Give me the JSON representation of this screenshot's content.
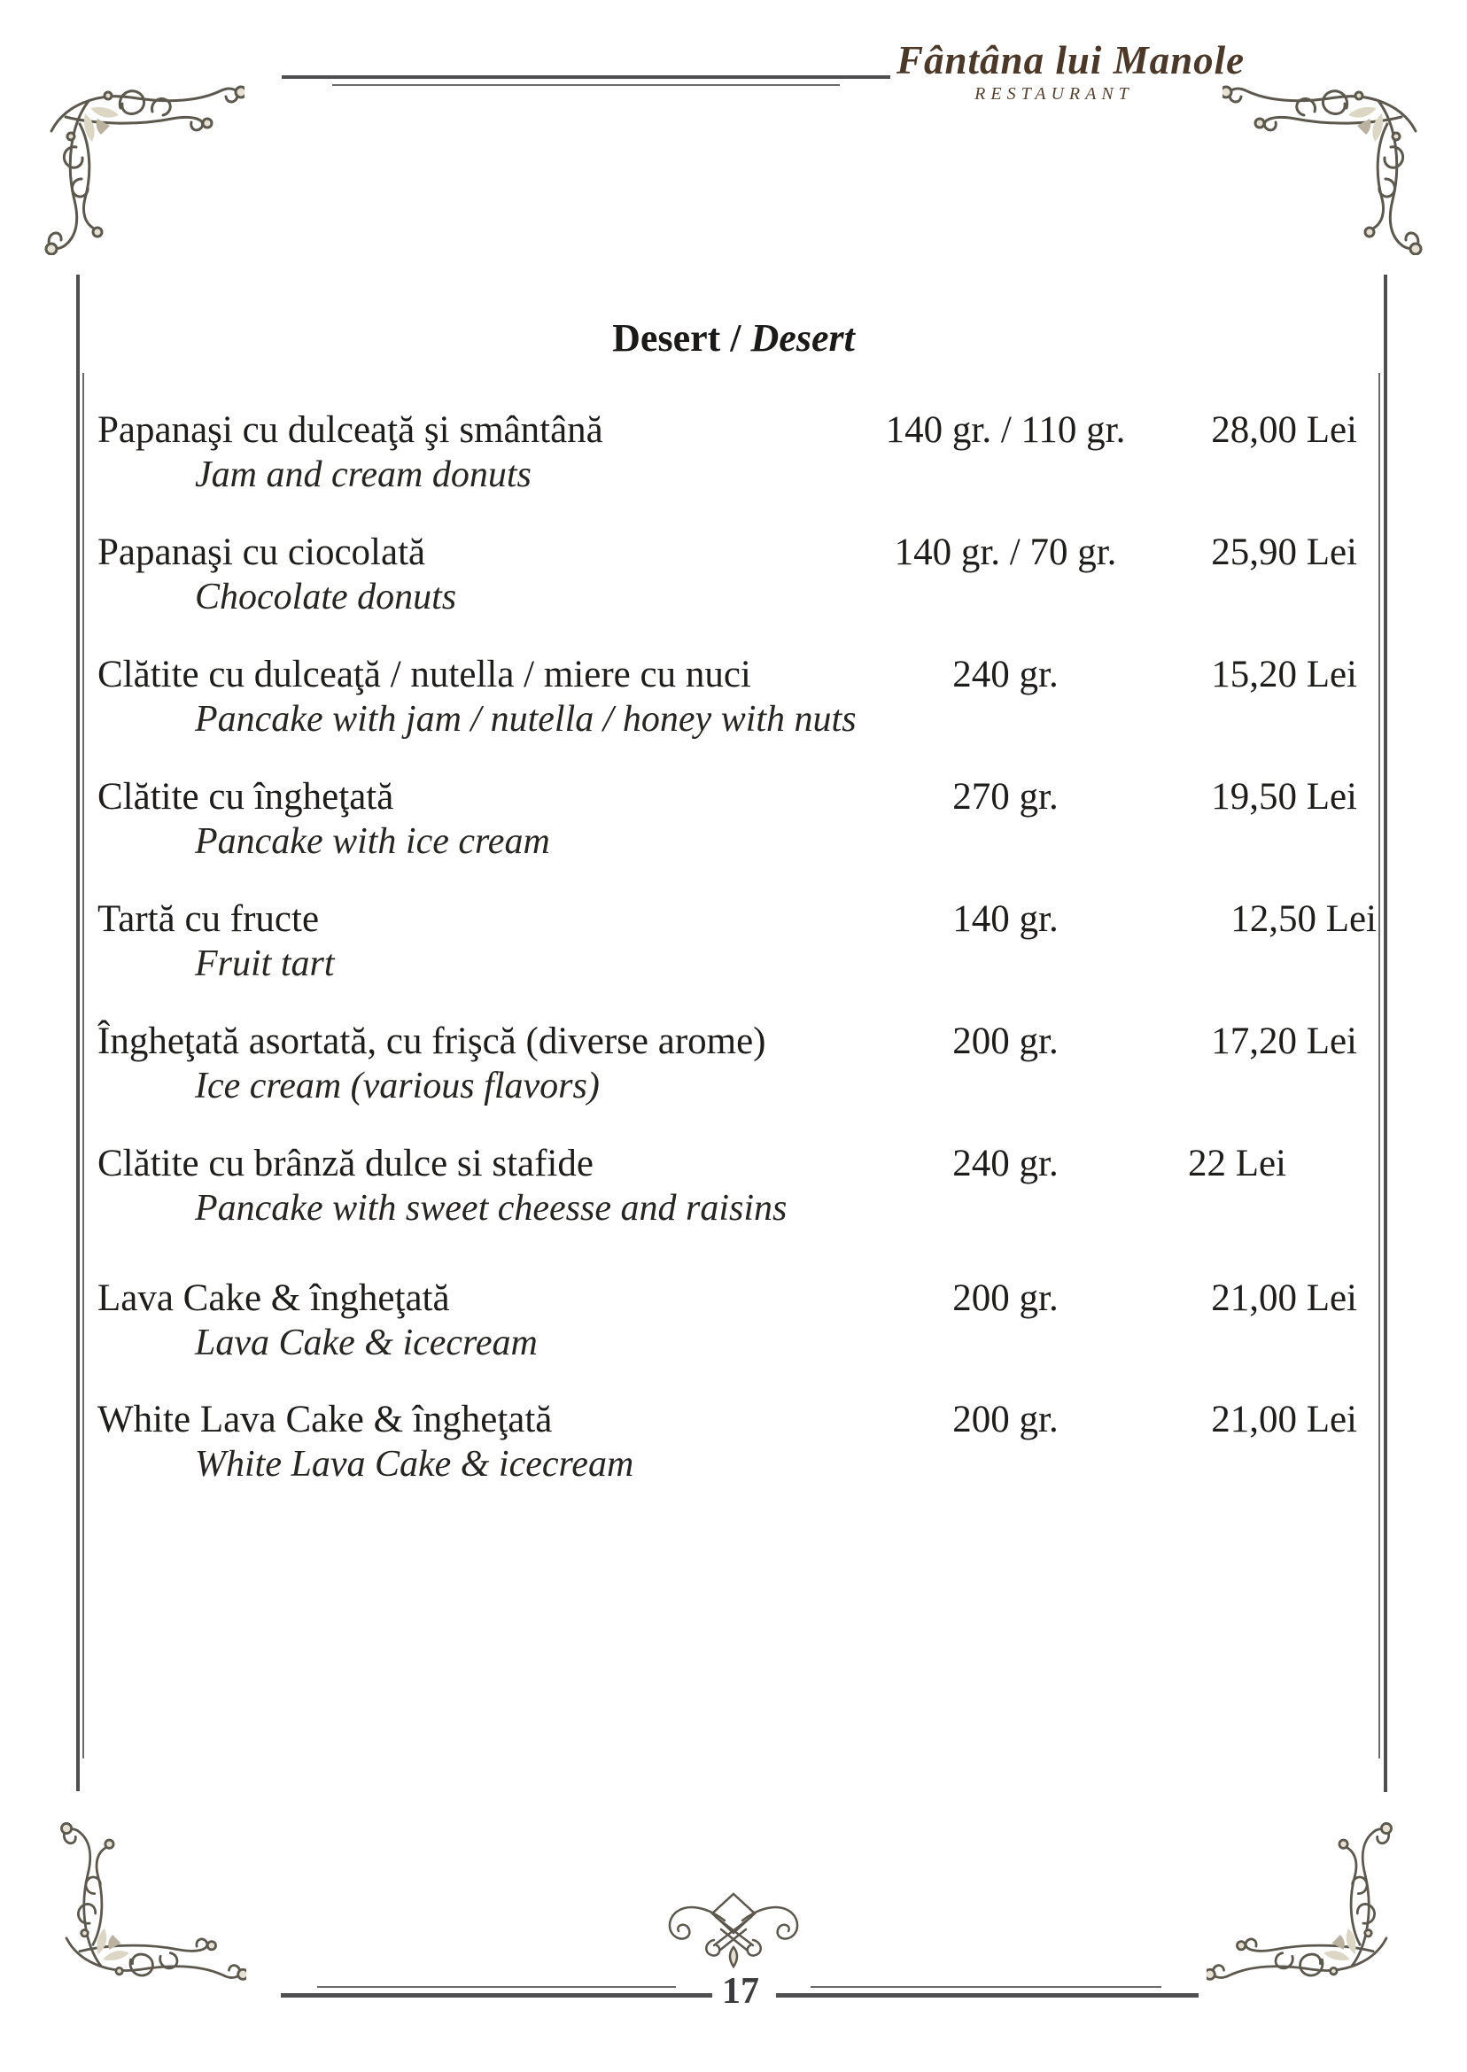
{
  "header": {
    "restaurant_name": "Fântâna lui Manole",
    "restaurant_subtitle": "RESTAURANT"
  },
  "title": {
    "ro": "Desert",
    "separator": " / ",
    "en": "Desert"
  },
  "menu": {
    "items": [
      {
        "name_ro": "Papanaşi cu dulceaţă şi smântână",
        "name_en": "Jam and cream donuts",
        "weight": "140 gr. / 110 gr.",
        "price": "28,00 Lei"
      },
      {
        "name_ro": "Papanaşi cu ciocolată",
        "name_en": "Chocolate donuts",
        "weight": "140 gr. / 70 gr.",
        "price": "25,90 Lei"
      },
      {
        "name_ro": "Clătite cu dulceaţă / nutella / miere cu nuci",
        "name_en": "Pancake with jam / nutella / honey with nuts",
        "weight": "240 gr.",
        "price": "15,20 Lei"
      },
      {
        "name_ro": "Clătite cu îngheţată",
        "name_en": "Pancake with ice cream",
        "weight": "270 gr.",
        "price": "19,50 Lei"
      },
      {
        "name_ro": "Tartă cu fructe",
        "name_en": "Fruit tart",
        "weight": "140 gr.",
        "price": "12,50 Lei"
      },
      {
        "name_ro": "Îngheţată asortată, cu frişcă (diverse arome)",
        "name_en": "Ice cream (various flavors)",
        "weight": "200 gr.",
        "price": "17,20 Lei"
      },
      {
        "name_ro": "Clătite cu brânză dulce si stafide",
        "name_en": "Pancake with sweet cheesse and raisins",
        "weight": "240 gr.",
        "price": "22 Lei"
      },
      {
        "name_ro": "Lava Cake & îngheţată",
        "name_en": "Lava Cake & icecream",
        "weight": "200 gr.",
        "price": "21,00 Lei"
      },
      {
        "name_ro": "White Lava Cake & îngheţată",
        "name_en": "White Lava Cake & icecream",
        "weight": "200 gr.",
        "price": "21,00 Lei"
      }
    ]
  },
  "footer": {
    "page_number": "17"
  },
  "colors": {
    "text": "#1e1d1b",
    "logo_brown": "#4b3828",
    "rule_dark": "#4f4f51",
    "rule_light": "#6a6a6c",
    "ornament_stroke": "#5c584e",
    "ornament_fill": "#e2ddcd"
  }
}
